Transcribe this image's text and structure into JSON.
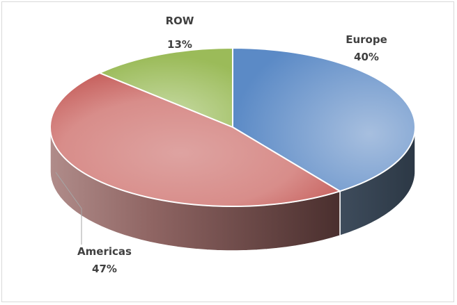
{
  "chart_data": {
    "type": "pie",
    "style": "3d",
    "title": "",
    "slices": [
      {
        "label": "Europe",
        "value": 40,
        "display": "40%",
        "color": "#5b8ac6"
      },
      {
        "label": "Americas",
        "value": 47,
        "display": "47%",
        "color": "#c0504d"
      },
      {
        "label": "ROW",
        "value": 13,
        "display": "13%",
        "color": "#9bbb59"
      }
    ],
    "legend": "none"
  }
}
